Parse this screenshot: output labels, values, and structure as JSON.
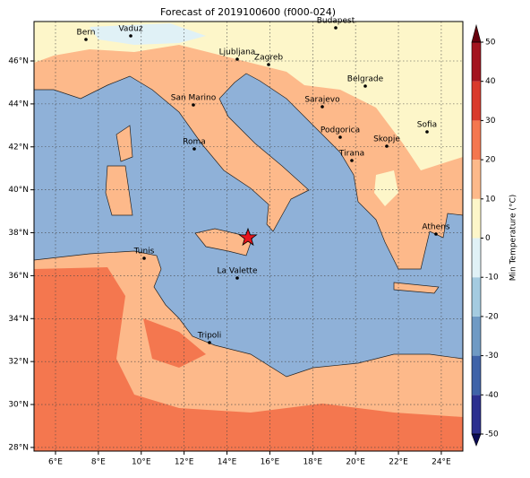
{
  "title": "Forecast of 2019100600 (f000-024)",
  "map": {
    "lon_ticks": [
      {
        "value": 6,
        "label": "6°E"
      },
      {
        "value": 8,
        "label": "8°E"
      },
      {
        "value": 10,
        "label": "10°E"
      },
      {
        "value": 12,
        "label": "12°E"
      },
      {
        "value": 14,
        "label": "14°E"
      },
      {
        "value": 16,
        "label": "16°E"
      },
      {
        "value": 18,
        "label": "18°E"
      },
      {
        "value": 20,
        "label": "20°E"
      },
      {
        "value": 22,
        "label": "22°E"
      },
      {
        "value": 24,
        "label": "24°E"
      }
    ],
    "lat_ticks": [
      {
        "value": 28,
        "label": "28°N"
      },
      {
        "value": 30,
        "label": "30°N"
      },
      {
        "value": 32,
        "label": "32°N"
      },
      {
        "value": 34,
        "label": "34°N"
      },
      {
        "value": 36,
        "label": "36°N"
      },
      {
        "value": 38,
        "label": "38°N"
      },
      {
        "value": 40,
        "label": "40°N"
      },
      {
        "value": 42,
        "label": "42°N"
      },
      {
        "value": 44,
        "label": "44°N"
      },
      {
        "value": 46,
        "label": "46°N"
      }
    ],
    "cities": [
      "Bern",
      "Vaduz",
      "Budapest",
      "Ljubljana",
      "Zagreb",
      "Belgrade",
      "San Marino",
      "Sarajevo",
      "Sofia",
      "Podgorica",
      "Skopje",
      "Roma",
      "Tirana",
      "Athens",
      "Tunis",
      "La Valette",
      "Tripoli"
    ]
  },
  "colorbar": {
    "label": "Min Temperature (°C)",
    "ticks": [
      -50,
      -40,
      -30,
      -20,
      -10,
      0,
      10,
      20,
      30,
      40,
      50
    ],
    "colors": [
      "#2c2f8f",
      "#3f63a8",
      "#6f9ac4",
      "#a4cbe0",
      "#e0f1f6",
      "#fdf6c9",
      "#fdb98a",
      "#f4774f",
      "#d93a2b",
      "#a3141e"
    ],
    "under_color": "#0b0b55",
    "over_color": "#67000d"
  }
}
